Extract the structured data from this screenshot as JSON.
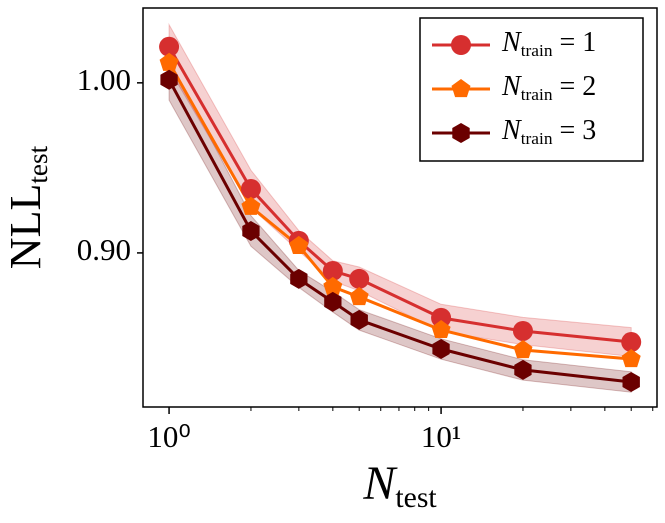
{
  "chart_data": {
    "type": "line",
    "xlabel": "N_test",
    "ylabel": "NLL_test",
    "xscale": "log",
    "x": [
      1,
      2,
      3,
      4,
      5,
      10,
      20,
      50
    ],
    "series": [
      {
        "name": "N_train = 1",
        "color": "#d62f2f",
        "marker": "circle",
        "values": [
          1.0212,
          0.9376,
          0.9071,
          0.8894,
          0.8847,
          0.8618,
          0.8541,
          0.8476
        ],
        "error": [
          0.013,
          0.011,
          0.006,
          0.006,
          0.007,
          0.008,
          0.008,
          0.0085
        ]
      },
      {
        "name": "N_train = 2",
        "color": "#ff6a00",
        "marker": "pentagon",
        "values": [
          1.0118,
          0.9271,
          0.9041,
          0.88,
          0.8741,
          0.8547,
          0.8429,
          0.8376
        ]
      },
      {
        "name": "N_train = 3",
        "color": "#6b0000",
        "marker": "hexagon",
        "values": [
          1.0018,
          0.9129,
          0.8847,
          0.8712,
          0.8606,
          0.8435,
          0.8312,
          0.8241
        ],
        "error": [
          0.012,
          0.009,
          0.005,
          0.006,
          0.006,
          0.006,
          0.006,
          0.006
        ]
      }
    ],
    "xlim": [
      0.802,
      62.2
    ],
    "ylim": [
      0.8094,
      1.044
    ],
    "xticks": [
      {
        "value": 1,
        "label": "10⁰"
      },
      {
        "value": 10,
        "label": "10¹"
      }
    ],
    "xminorticks": [
      2,
      3,
      4,
      5,
      6,
      7,
      8,
      9,
      20,
      30,
      40,
      50,
      60
    ],
    "yticks": [
      {
        "value": 0.9,
        "label": "0.90"
      },
      {
        "value": 1.0,
        "label": "1.00"
      }
    ],
    "legend": "upper right",
    "grid": false
  }
}
